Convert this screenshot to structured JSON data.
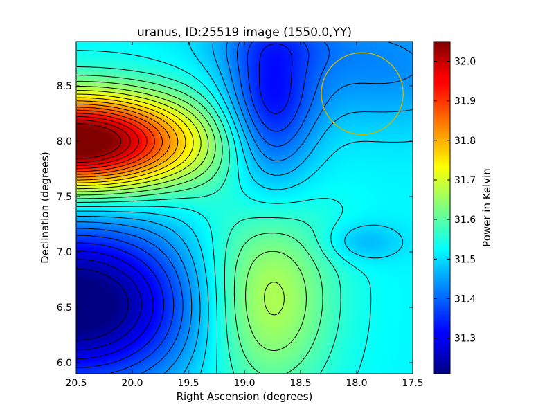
{
  "chart_data": {
    "type": "heatmap",
    "title": "uranus, ID:25519 image (1550.0,YY)",
    "xlabel": "Right Ascension (degrees)",
    "ylabel": "Declination (degrees)",
    "colorbar_label": "Power in Kelvin",
    "x_axis": {
      "range": [
        20.5,
        17.5
      ],
      "ticks": [
        20.5,
        20.0,
        19.5,
        19.0,
        18.5,
        18.0,
        17.5
      ],
      "tick_labels": [
        "20.5",
        "20.0",
        "19.5",
        "19.0",
        "18.5",
        "18.0",
        "17.5"
      ]
    },
    "y_axis": {
      "range": [
        5.9,
        8.9
      ],
      "ticks": [
        6.0,
        6.5,
        7.0,
        7.5,
        8.0,
        8.5
      ],
      "tick_labels": [
        "6.0",
        "6.5",
        "7.0",
        "7.5",
        "8.0",
        "8.5"
      ]
    },
    "colorbar": {
      "range": [
        31.21,
        32.05
      ],
      "ticks": [
        31.3,
        31.4,
        31.5,
        31.6,
        31.7,
        31.8,
        31.9,
        32.0
      ],
      "tick_labels": [
        "31.3",
        "31.4",
        "31.5",
        "31.6",
        "31.7",
        "31.8",
        "31.9",
        "32.0"
      ],
      "colormap": "jet"
    },
    "features": [
      {
        "kind": "maximum",
        "ra": 20.45,
        "dec": 7.9,
        "value": 32.05
      },
      {
        "kind": "minimum",
        "ra": 20.4,
        "dec": 6.6,
        "value": 31.21
      },
      {
        "kind": "minimum",
        "ra": 18.8,
        "dec": 8.0,
        "value": 31.35
      },
      {
        "kind": "local-maximum",
        "ra": 18.75,
        "dec": 6.7,
        "value": 31.68
      },
      {
        "kind": "local-minimum",
        "ra": 18.05,
        "dec": 7.07,
        "value": 31.47
      }
    ],
    "contour_levels": 26,
    "circle": {
      "ra": 17.95,
      "dec": 8.43,
      "radius_deg": 0.365,
      "color": "#c8b400"
    }
  }
}
